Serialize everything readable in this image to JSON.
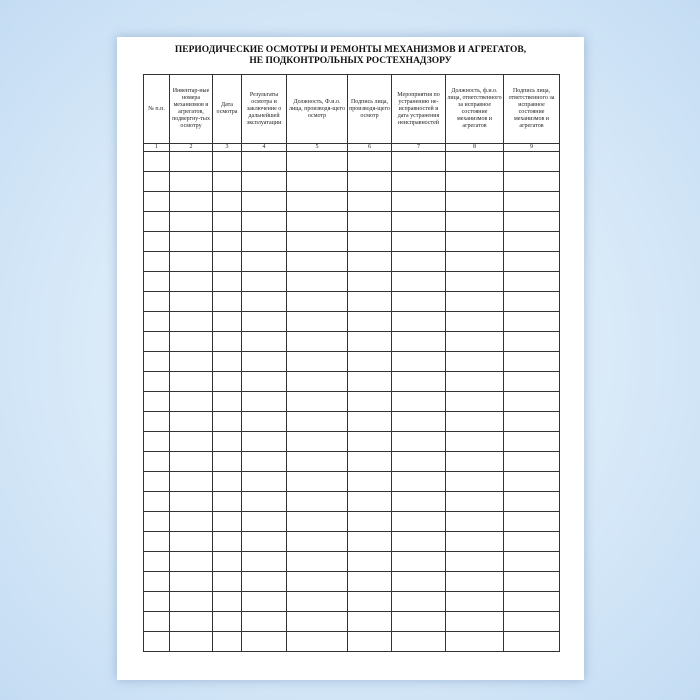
{
  "document": {
    "title_line1": "ПЕРИОДИЧЕСКИЕ ОСМОТРЫ И РЕМОНТЫ МЕХАНИЗМОВ И АГРЕГАТОВ,",
    "title_line2": "НЕ ПОДКОНТРОЛЬНЫХ РОСТЕХНАДЗОРУ",
    "columns": [
      {
        "header": "№ п.п.",
        "num": "1"
      },
      {
        "header": "Инвентар-ные номера механизмов и агрегатов, подвергну-тых осмотру",
        "num": "2"
      },
      {
        "header": "Дата осмотра",
        "num": "3"
      },
      {
        "header": "Результаты осмотра и заключение о дальнейшей эксплуатации",
        "num": "4"
      },
      {
        "header": "Должность, Ф.и.о. лица, производя-щего осмотр",
        "num": "5"
      },
      {
        "header": "Подпись лица, производя-щего осмотр",
        "num": "6"
      },
      {
        "header": "Мероприятия по устранению не-исправностей и дата устранения неисправностей",
        "num": "7"
      },
      {
        "header": "Должность, ф.и.о. лица, ответственного за исправное состояние механизмов и агрегатов",
        "num": "8"
      },
      {
        "header": "Подпись лица, ответственного за исправное состояние механизмов и агрегатов",
        "num": "9"
      }
    ]
  }
}
